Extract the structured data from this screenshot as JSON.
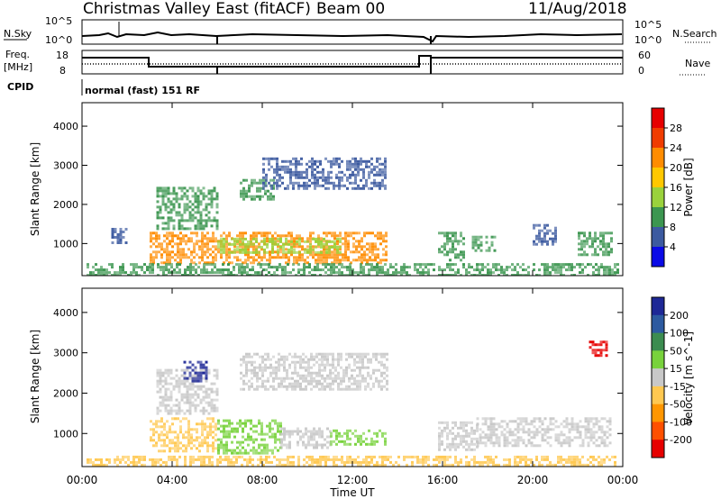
{
  "header": {
    "station": "Christmas Valley East (fitACF)",
    "beam": "Beam 00",
    "date": "11/Aug/2018"
  },
  "noise_panel": {
    "left_label": "N.Sky",
    "right_label": "N.Search",
    "left_ticks": [
      "10^5",
      "10^0"
    ],
    "right_ticks": [
      "10^5",
      "10^0"
    ]
  },
  "freq_panel": {
    "left_label_1": "Freq.",
    "left_label_2": "[MHz]",
    "left_ticks": [
      "18",
      "8"
    ],
    "right_label": "Nave",
    "right_ticks": [
      "60",
      "0"
    ]
  },
  "cpid_panel": {
    "label": "CPID",
    "mode": "normal (fast) 151 RF"
  },
  "axes": {
    "ylabel": "Slant Range [km]",
    "xlabel": "Time UT",
    "y_ticks": [
      "4000",
      "3000",
      "2000",
      "1000"
    ],
    "x_ticks": [
      "00:00",
      "04:00",
      "08:00",
      "12:00",
      "16:00",
      "20:00",
      "00:00"
    ]
  },
  "colorbars": {
    "power": {
      "label": "Power [dB]",
      "ticks": [
        "28",
        "24",
        "20",
        "16",
        "12",
        "8",
        "4"
      ],
      "colors": [
        "#e60000",
        "#f03c00",
        "#ff8c00",
        "#ffc800",
        "#9ad23c",
        "#3c9650",
        "#3c5aa0",
        "#0a0ae6"
      ]
    },
    "velocity": {
      "label": "Velocity [m s^-1]",
      "ticks": [
        "200",
        "100",
        "50",
        "15",
        "-15",
        "-50",
        "-100",
        "-200"
      ],
      "colors": [
        "#1e2896",
        "#2d5aa0",
        "#3c8c50",
        "#78d23c",
        "#c8c8c8",
        "#ffc850",
        "#ff9600",
        "#ff5000",
        "#e60000"
      ]
    }
  },
  "chart_data": [
    {
      "type": "heatmap",
      "title": "Power",
      "xlabel": "Time UT",
      "ylabel": "Slant Range [km]",
      "xlim_hours": [
        0,
        24
      ],
      "ylim_km": [
        180,
        4600
      ],
      "regions": [
        {
          "t0": 3.0,
          "t1": 13.5,
          "r0": 500,
          "r1": 1300,
          "color": "#ff8c00"
        },
        {
          "t0": 6.0,
          "t1": 11.5,
          "r0": 750,
          "r1": 1150,
          "color": "#9ad23c"
        },
        {
          "t0": 3.3,
          "t1": 6.0,
          "r0": 1400,
          "r1": 2450,
          "color": "#3c9650"
        },
        {
          "t0": 7.0,
          "t1": 8.5,
          "r0": 2150,
          "r1": 2650,
          "color": "#3c9650"
        },
        {
          "t0": 8.0,
          "t1": 13.5,
          "r0": 2400,
          "r1": 3200,
          "color": "#3c5aa0"
        },
        {
          "t0": 1.3,
          "t1": 2.0,
          "r0": 1000,
          "r1": 1400,
          "color": "#3c5aa0"
        },
        {
          "t0": 15.8,
          "t1": 17.0,
          "r0": 600,
          "r1": 1300,
          "color": "#3c9650"
        },
        {
          "t0": 17.3,
          "t1": 18.3,
          "r0": 800,
          "r1": 1200,
          "color": "#3c9650"
        },
        {
          "t0": 20.0,
          "t1": 21.0,
          "r0": 1000,
          "r1": 1500,
          "color": "#3c5aa0"
        },
        {
          "t0": 22.0,
          "t1": 23.5,
          "r0": 700,
          "r1": 1300,
          "color": "#3c9650"
        },
        {
          "t0": 0.2,
          "t1": 23.8,
          "r0": 200,
          "r1": 500,
          "color": "#3c9650"
        }
      ]
    },
    {
      "type": "heatmap",
      "title": "Velocity",
      "xlabel": "Time UT",
      "ylabel": "Slant Range [km]",
      "xlim_hours": [
        0,
        24
      ],
      "ylim_km": [
        180,
        4600
      ],
      "regions": [
        {
          "t0": 3.0,
          "t1": 6.0,
          "r0": 550,
          "r1": 1400,
          "color": "#ffc850"
        },
        {
          "t0": 6.0,
          "t1": 8.8,
          "r0": 500,
          "r1": 1350,
          "color": "#78d23c"
        },
        {
          "t0": 8.8,
          "t1": 11.0,
          "r0": 650,
          "r1": 1150,
          "color": "#c8c8c8"
        },
        {
          "t0": 11.0,
          "t1": 13.5,
          "r0": 700,
          "r1": 1100,
          "color": "#78d23c"
        },
        {
          "t0": 3.3,
          "t1": 6.0,
          "r0": 1500,
          "r1": 2600,
          "color": "#c8c8c8"
        },
        {
          "t0": 4.5,
          "t1": 5.5,
          "r0": 2300,
          "r1": 2800,
          "color": "#1e2896"
        },
        {
          "t0": 7.0,
          "t1": 13.5,
          "r0": 2100,
          "r1": 3000,
          "color": "#c8c8c8"
        },
        {
          "t0": 15.8,
          "t1": 17.5,
          "r0": 600,
          "r1": 1300,
          "color": "#c8c8c8"
        },
        {
          "t0": 17.5,
          "t1": 23.5,
          "r0": 700,
          "r1": 1400,
          "color": "#c8c8c8"
        },
        {
          "t0": 22.5,
          "t1": 23.3,
          "r0": 2900,
          "r1": 3300,
          "color": "#e60000"
        },
        {
          "t0": 0.2,
          "t1": 23.8,
          "r0": 200,
          "r1": 450,
          "color": "#ffc850"
        }
      ]
    }
  ]
}
